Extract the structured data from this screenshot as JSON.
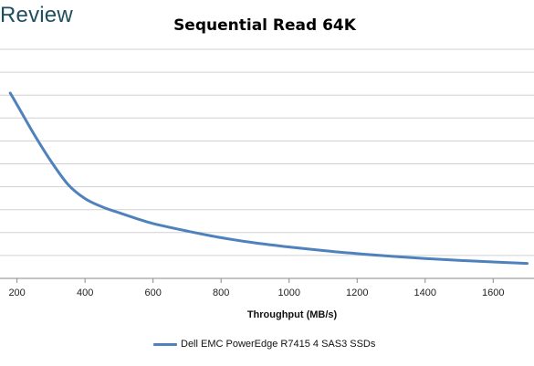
{
  "brand": {
    "text": "Review"
  },
  "chart_data": {
    "type": "line",
    "title": "Sequential Read 64K",
    "xlabel": "Throughput (MB/s)",
    "ylabel": "",
    "xlim": [
      150,
      1720
    ],
    "x_ticks": [
      200,
      400,
      600,
      800,
      1000,
      1200,
      1400,
      1600
    ],
    "grid": true,
    "legend_position": "bottom",
    "series": [
      {
        "name": "Dell EMC PowerEdge R7415 4 SAS3 SSDs",
        "color": "#4f81bd",
        "points": [
          [
            180,
            7.2
          ],
          [
            200,
            6.75
          ],
          [
            250,
            5.6
          ],
          [
            300,
            4.55
          ],
          [
            350,
            3.65
          ],
          [
            400,
            3.1
          ],
          [
            450,
            2.78
          ],
          [
            500,
            2.55
          ],
          [
            550,
            2.33
          ],
          [
            600,
            2.13
          ],
          [
            700,
            1.84
          ],
          [
            800,
            1.58
          ],
          [
            900,
            1.38
          ],
          [
            1000,
            1.22
          ],
          [
            1100,
            1.08
          ],
          [
            1200,
            0.96
          ],
          [
            1300,
            0.86
          ],
          [
            1400,
            0.77
          ],
          [
            1500,
            0.7
          ],
          [
            1600,
            0.64
          ],
          [
            1700,
            0.58
          ]
        ]
      }
    ]
  }
}
